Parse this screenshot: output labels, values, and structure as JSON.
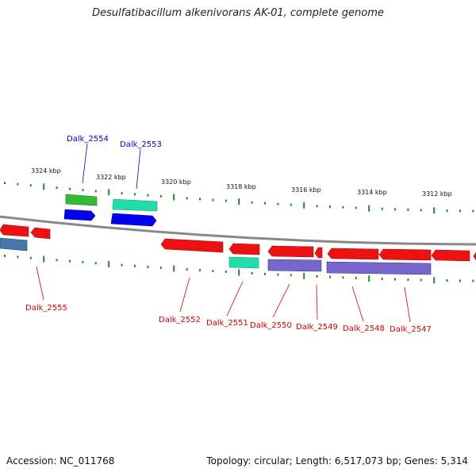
{
  "title": "Desulfatibacillum alkenivorans AK-01, complete genome",
  "footer": {
    "accession": "Accession: NC_011768",
    "summary": "Topology: circular; Length: 6,517,073 bp; Genes: 5,314"
  },
  "colors": {
    "forward_label": "#0000bb",
    "reverse_label": "#cc0000",
    "tick": "#228822",
    "backbone": "#888888",
    "gene_red": "#ee1111",
    "gene_green": "#33bb33",
    "gene_teal": "#22ddaa",
    "gene_blue": "#0000ee",
    "gene_purple": "#7766cc",
    "gene_steel": "#4477aa"
  },
  "scale_labels": [
    "3324 kbp",
    "3322 kbp",
    "3320 kbp",
    "3318 kbp",
    "3316 kbp",
    "3314 kbp",
    "3312 kbp"
  ],
  "gene_labels": {
    "forward": [
      "Dalk_2554",
      "Dalk_2553"
    ],
    "reverse": [
      "Dalk_2555",
      "Dalk_2552",
      "Dalk_2551",
      "Dalk_2550",
      "Dalk_2549",
      "Dalk_2548",
      "Dalk_2547"
    ]
  }
}
